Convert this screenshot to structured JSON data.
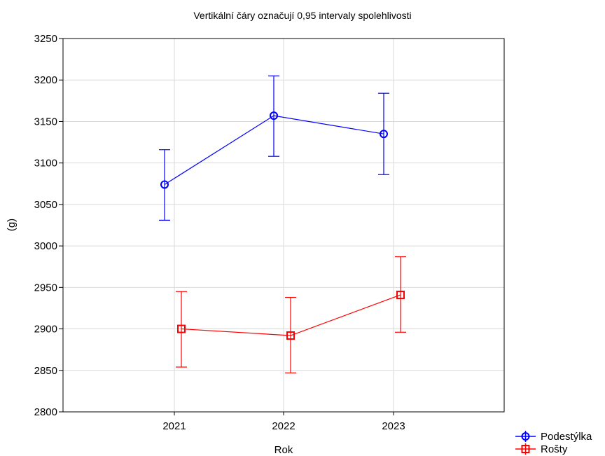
{
  "chart_data": {
    "type": "line",
    "title": "Vertikální čáry označují 0,95 intervaly spolehlivosti",
    "xlabel": "Rok",
    "ylabel": "(g)",
    "categories": [
      "2021",
      "2022",
      "2023"
    ],
    "ylim": [
      2800,
      3250
    ],
    "yticks": [
      2800,
      2850,
      2900,
      2950,
      3000,
      3050,
      3100,
      3150,
      3200,
      3250
    ],
    "grid": true,
    "legend_position": "bottom-right",
    "series": [
      {
        "name": "Podestýlka",
        "color": "#0000ff",
        "marker": "circle",
        "values": [
          3074,
          3157,
          3135
        ],
        "ci_low": [
          3031,
          3108,
          3086
        ],
        "ci_high": [
          3116,
          3205,
          3184
        ]
      },
      {
        "name": "Rošty",
        "color": "#ff0000",
        "marker": "square",
        "values": [
          2900,
          2892,
          2941
        ],
        "ci_low": [
          2854,
          2847,
          2896
        ],
        "ci_high": [
          2945,
          2938,
          2987
        ]
      }
    ]
  }
}
